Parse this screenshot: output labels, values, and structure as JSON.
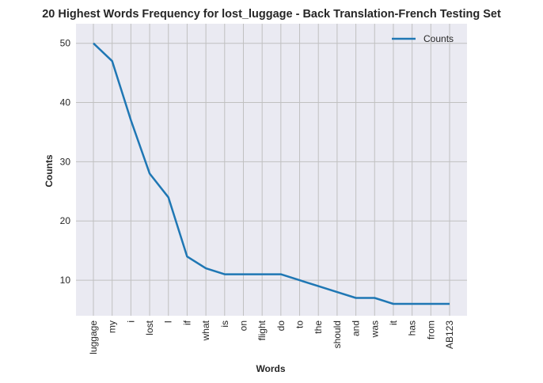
{
  "chart_data": {
    "type": "line",
    "title": "20 Highest Words Frequency for lost_luggage - Back Translation-French Testing Set",
    "xlabel": "Words",
    "ylabel": "Counts",
    "categories": [
      "luggage",
      "my",
      "i",
      "lost",
      "I",
      "if",
      "what",
      "is",
      "on",
      "flight",
      "do",
      "to",
      "the",
      "should",
      "and",
      "was",
      "it",
      "has",
      "from",
      "AB123"
    ],
    "series": [
      {
        "name": "Counts",
        "values": [
          50,
          47,
          37,
          28,
          24,
          14,
          12,
          11,
          11,
          11,
          11,
          10,
          9,
          8,
          7,
          7,
          6,
          6,
          6,
          6
        ]
      }
    ],
    "ylim": [
      4,
      53.3
    ],
    "yticks": [
      10,
      20,
      30,
      40,
      50
    ],
    "grid": true,
    "legend_position": "top-right",
    "colors": {
      "line": "#1f77b4",
      "plot_bg": "#eaeaf2",
      "grid": "#c0c0c0"
    }
  }
}
